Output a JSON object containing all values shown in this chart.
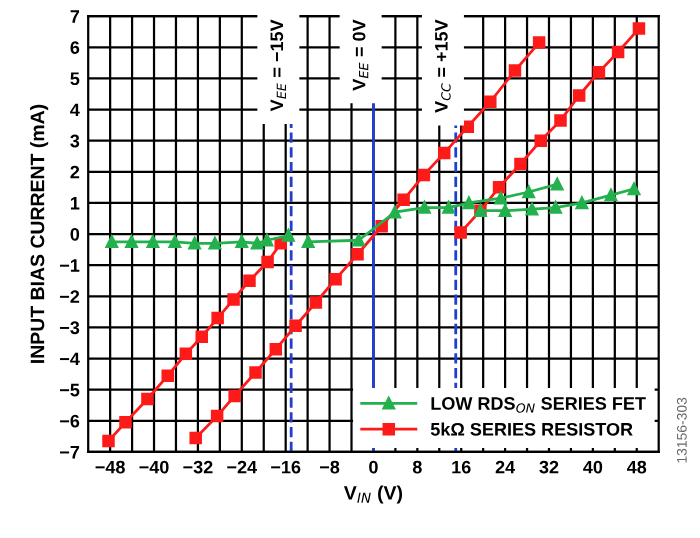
{
  "chart_data": {
    "type": "line",
    "xlabel": "V$_{IN}$ (V)",
    "ylabel": "INPUT BIAS CURRENT (mA)",
    "xlim": [
      -52,
      52
    ],
    "ylim": [
      -7,
      7
    ],
    "xticks": [
      -48,
      {
        "value": -44,
        "label": null
      },
      -40,
      {
        "value": -36,
        "label": null
      },
      -32,
      {
        "value": -28,
        "label": null
      },
      -24,
      {
        "value": -20,
        "label": null
      },
      -16,
      {
        "value": -12,
        "label": null
      },
      -8,
      {
        "value": -4,
        "label": null
      },
      0,
      {
        "value": 4,
        "label": null
      },
      8,
      {
        "value": 12,
        "label": null
      },
      16,
      {
        "value": 20,
        "label": null
      },
      24,
      {
        "value": 28,
        "label": null
      },
      32,
      {
        "value": 36,
        "label": null
      },
      40,
      {
        "value": 44,
        "label": null
      },
      48
    ],
    "yticks": [
      -7,
      -6,
      -5,
      -4,
      -3,
      -2,
      -1,
      0,
      1,
      2,
      3,
      4,
      5,
      6,
      7
    ],
    "grid": true,
    "legend": "bottom right",
    "line_style": "solid",
    "series": [
      {
        "name": "LOW RDS$_{ON}$ SERIES FET",
        "color": "#22b14c",
        "marker": "triangle",
        "x": [
          -11.9,
          -2.7,
          3.9,
          9.3,
          13.7,
          17.4,
          23.2,
          28.3,
          33.5
        ],
        "values": [
          -0.25,
          -0.2,
          0.7,
          0.85,
          0.85,
          1.0,
          1.15,
          1.35,
          1.6
        ]
      },
      {
        "color": "#22b14c",
        "marker": "triangle",
        "x": [
          -47.7,
          -44.1,
          -40.2,
          -36.2,
          -32.6,
          -28.9,
          -24.0,
          -21.2,
          -19.4,
          -15.5
        ],
        "values": [
          -0.25,
          -0.25,
          -0.25,
          -0.25,
          -0.3,
          -0.3,
          -0.25,
          -0.3,
          -0.2,
          -0.05
        ]
      },
      {
        "color": "#22b14c",
        "marker": "triangle",
        "x": [
          19.5,
          24.0,
          28.9,
          33.2,
          38.0,
          43.3,
          47.5
        ],
        "values": [
          0.75,
          0.75,
          0.8,
          0.85,
          1.0,
          1.25,
          1.45
        ]
      },
      {
        "name": "5kΩ SERIES RESISTOR",
        "color": "#ff1a1a",
        "marker": "square",
        "x": [
          -32.4,
          -28.5,
          -25.3,
          -21.5,
          -17.8,
          -14.2,
          -10.5,
          -6.9,
          -2.9,
          1.5,
          5.5,
          9.2,
          12.9,
          17.2,
          21.3,
          25.8,
          30.2
        ],
        "values": [
          -6.55,
          -5.85,
          -5.2,
          -4.45,
          -3.7,
          -2.95,
          -2.2,
          -1.45,
          -0.65,
          0.25,
          1.1,
          1.9,
          2.6,
          3.45,
          4.25,
          5.25,
          6.15
        ]
      },
      {
        "color": "#ff1a1a",
        "marker": "square",
        "x": [
          -48.3,
          -45.2,
          -41.2,
          -37.5,
          -34.2,
          -31.3,
          -28.4,
          -25.5,
          -22.6,
          -19.3,
          -16.9
        ],
        "values": [
          -6.65,
          -6.05,
          -5.3,
          -4.55,
          -3.85,
          -3.3,
          -2.7,
          -2.1,
          -1.5,
          -0.9,
          -0.3
        ]
      },
      {
        "color": "#ff1a1a",
        "marker": "square",
        "x": [
          15.9,
          19.5,
          22.9,
          26.8,
          30.5,
          34.1,
          37.5,
          41.1,
          44.6,
          48.4
        ],
        "values": [
          0.05,
          0.75,
          1.5,
          2.25,
          3.0,
          3.65,
          4.45,
          5.2,
          5.85,
          6.6
        ]
      }
    ],
    "ref_lines": [
      {
        "axis": "x",
        "value": -15,
        "label": "V$_{EE}$ = −15V",
        "color": "#1f3fd0",
        "line_style": "dashed"
      },
      {
        "axis": "x",
        "value": 0,
        "label": "V$_{EE}$ = 0V",
        "color": "#1f3fd0",
        "line_style": "solid"
      },
      {
        "axis": "x",
        "value": 15,
        "label": "V$_{CC}$ = +15V",
        "color": "#1f3fd0",
        "line_style": "dashed"
      }
    ],
    "annotations": [
      "13156-303"
    ]
  }
}
